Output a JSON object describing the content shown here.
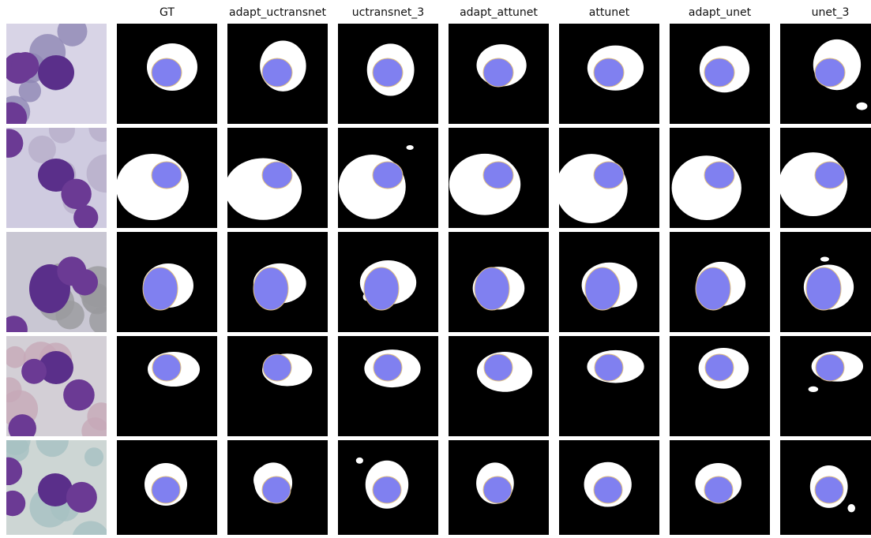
{
  "headers": [
    "GT",
    "adapt_uctransnet",
    "uctransnet_3",
    "adapt_attunet",
    "attunet",
    "adapt_unet",
    "unet_3"
  ]
}
